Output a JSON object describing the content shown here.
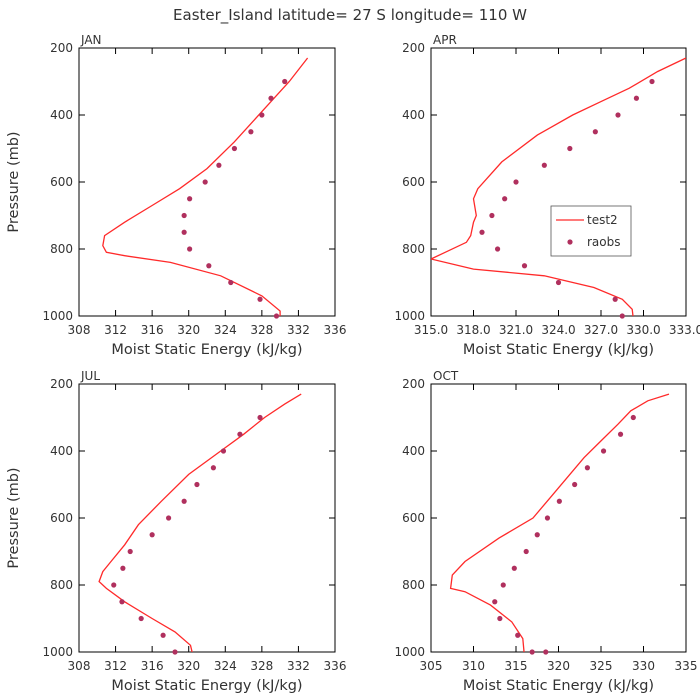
{
  "title": "Easter_Island   latitude= 27 S longitude= 110 W",
  "colors": {
    "model": "#ff2a2a",
    "obs": "#b0305e",
    "axis": "#000000",
    "text": "#333333"
  },
  "chart_data": [
    {
      "type": "line",
      "panel": "JAN",
      "xlabel": "Moist Static Energy (kJ/kg)",
      "ylabel": "Pressure (mb)",
      "xlim": [
        308,
        336
      ],
      "ylim": [
        1000,
        200
      ],
      "xticks": [
        308,
        312,
        316,
        320,
        324,
        328,
        332,
        336
      ],
      "xtick_labels": [
        "308",
        "312",
        "316",
        "320",
        "324",
        "328",
        "332",
        "336"
      ],
      "yticks": [
        200,
        400,
        600,
        800,
        1000
      ],
      "ytick_labels": [
        "200",
        "400",
        "600",
        "800",
        "1000"
      ],
      "series": [
        {
          "name": "test2",
          "kind": "line",
          "x": [
            333.0,
            331.0,
            329.0,
            327.0,
            325.0,
            322.0,
            319.0,
            316.0,
            313.0,
            310.8,
            310.6,
            311.0,
            313.0,
            318.0,
            323.5,
            328.0,
            330.0,
            330.0
          ],
          "y": [
            230,
            300,
            360,
            420,
            480,
            560,
            620,
            670,
            720,
            760,
            790,
            810,
            820,
            840,
            880,
            940,
            985,
            1015
          ]
        },
        {
          "name": "raobs",
          "kind": "scatter",
          "x": [
            330.5,
            329.0,
            328.0,
            326.8,
            325.0,
            323.3,
            321.8,
            320.1,
            319.5,
            319.5,
            320.1,
            322.2,
            324.6,
            327.8,
            329.6
          ],
          "y": [
            300,
            350,
            400,
            450,
            500,
            550,
            600,
            650,
            700,
            750,
            800,
            850,
            900,
            950,
            1000
          ]
        }
      ]
    },
    {
      "type": "line",
      "panel": "APR",
      "xlabel": "Moist Static Energy (kJ/kg)",
      "ylabel": "",
      "xlim": [
        315,
        333
      ],
      "ylim": [
        1000,
        200
      ],
      "xticks": [
        315,
        318,
        321,
        324,
        327,
        330,
        333
      ],
      "xtick_labels": [
        "315.0",
        "318.0",
        "321.0",
        "324.0",
        "327.0",
        "330.0",
        "333.0"
      ],
      "yticks": [
        200,
        400,
        600,
        800,
        1000
      ],
      "ytick_labels": [
        "200",
        "400",
        "600",
        "800",
        "1000"
      ],
      "legend": {
        "placement": "right",
        "entries": [
          "test2",
          "raobs"
        ]
      },
      "series": [
        {
          "name": "test2",
          "kind": "line",
          "x": [
            333.0,
            331.0,
            329.0,
            327.0,
            325.0,
            322.5,
            320.0,
            318.3,
            318.0,
            318.2,
            318.0,
            317.8,
            317.5,
            316.0,
            315.0,
            318.0,
            323.0,
            326.5,
            328.5,
            329.2,
            329.3
          ],
          "y": [
            230,
            270,
            320,
            360,
            400,
            460,
            540,
            620,
            650,
            700,
            720,
            760,
            780,
            810,
            830,
            860,
            880,
            915,
            950,
            980,
            1015
          ]
        },
        {
          "name": "raobs",
          "kind": "scatter",
          "x": [
            330.6,
            329.5,
            328.2,
            326.6,
            324.8,
            323.0,
            321.0,
            320.2,
            319.3,
            318.6,
            319.7,
            321.6,
            324.0,
            328.0,
            328.5
          ],
          "y": [
            300,
            350,
            400,
            450,
            500,
            550,
            600,
            650,
            700,
            750,
            800,
            850,
            900,
            950,
            1000
          ]
        }
      ]
    },
    {
      "type": "line",
      "panel": "JUL",
      "xlabel": "Moist Static Energy (kJ/kg)",
      "ylabel": "Pressure (mb)",
      "xlim": [
        308,
        336
      ],
      "ylim": [
        1000,
        200
      ],
      "xticks": [
        308,
        312,
        316,
        320,
        324,
        328,
        332,
        336
      ],
      "xtick_labels": [
        "308",
        "312",
        "316",
        "320",
        "324",
        "328",
        "332",
        "336"
      ],
      "yticks": [
        200,
        400,
        600,
        800,
        1000
      ],
      "ytick_labels": [
        "200",
        "400",
        "600",
        "800",
        "1000"
      ],
      "series": [
        {
          "name": "test2",
          "kind": "line",
          "x": [
            332.3,
            330.5,
            328.3,
            326.0,
            323.5,
            320.0,
            317.0,
            314.5,
            313.0,
            311.5,
            310.6,
            310.2,
            311.0,
            313.0,
            316.0,
            318.5,
            320.2,
            320.5
          ],
          "y": [
            230,
            260,
            300,
            350,
            400,
            470,
            550,
            620,
            680,
            730,
            760,
            790,
            810,
            850,
            900,
            940,
            980,
            1015
          ]
        },
        {
          "name": "raobs",
          "kind": "scatter",
          "x": [
            327.8,
            325.6,
            323.8,
            322.7,
            320.9,
            319.5,
            317.8,
            316.0,
            313.6,
            312.8,
            311.8,
            312.7,
            314.8,
            317.2,
            318.5
          ],
          "y": [
            300,
            350,
            400,
            450,
            500,
            550,
            600,
            650,
            700,
            750,
            800,
            850,
            900,
            950,
            1000
          ]
        }
      ]
    },
    {
      "type": "line",
      "panel": "OCT",
      "xlabel": "Moist Static Energy (kJ/kg)",
      "ylabel": "",
      "xlim": [
        305,
        335
      ],
      "ylim": [
        1000,
        200
      ],
      "xticks": [
        305,
        310,
        315,
        320,
        325,
        330,
        335
      ],
      "xtick_labels": [
        "305",
        "310",
        "315",
        "320",
        "325",
        "330",
        "335"
      ],
      "yticks": [
        200,
        400,
        600,
        800,
        1000
      ],
      "ytick_labels": [
        "200",
        "400",
        "600",
        "800",
        "1000"
      ],
      "series": [
        {
          "name": "test2",
          "kind": "line",
          "x": [
            333.0,
            330.5,
            328.5,
            327.0,
            325.0,
            323.0,
            321.0,
            319.0,
            317.0,
            313.0,
            309.0,
            307.5,
            307.3,
            309.0,
            312.0,
            314.5,
            315.8,
            316.0
          ],
          "y": [
            230,
            250,
            280,
            320,
            370,
            420,
            480,
            540,
            600,
            660,
            730,
            770,
            810,
            820,
            860,
            910,
            960,
            1015
          ]
        },
        {
          "name": "raobs",
          "kind": "scatter",
          "x": [
            328.8,
            327.3,
            325.3,
            323.4,
            321.9,
            320.1,
            318.7,
            317.5,
            316.2,
            314.8,
            313.5,
            312.5,
            313.1,
            315.2,
            316.9,
            318.5
          ],
          "y": [
            300,
            350,
            400,
            450,
            500,
            550,
            600,
            650,
            700,
            750,
            800,
            850,
            900,
            950,
            1000,
            1000
          ]
        }
      ]
    }
  ]
}
